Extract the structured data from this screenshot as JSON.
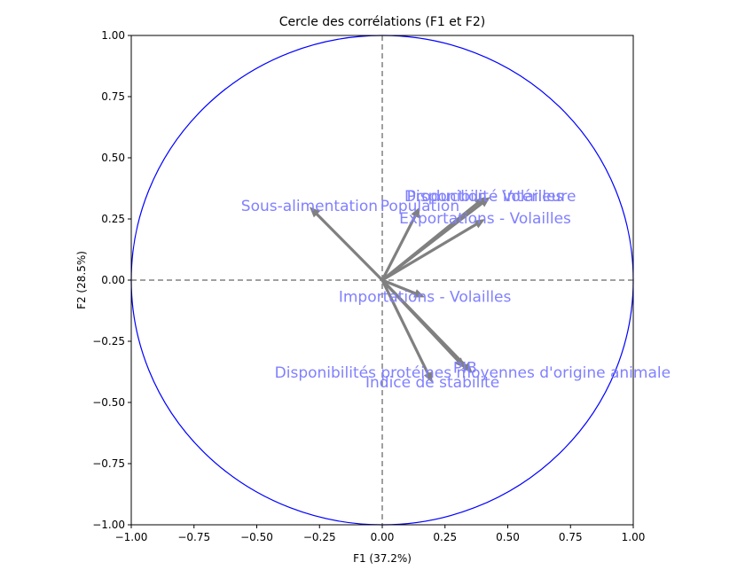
{
  "chart_data": {
    "type": "scatter",
    "title": "Cercle des corrélations (F1 et F2)",
    "xlabel": "F1 (37.2%)",
    "ylabel": "F2 (28.5%)",
    "xlim": [
      -1.0,
      1.0
    ],
    "ylim": [
      -1.0,
      1.0
    ],
    "xticks": [
      -1.0,
      -0.75,
      -0.5,
      -0.25,
      0.0,
      0.25,
      0.5,
      0.75,
      1.0
    ],
    "yticks": [
      -1.0,
      -0.75,
      -0.5,
      -0.25,
      0.0,
      0.25,
      0.5,
      0.75,
      1.0
    ],
    "xtick_labels": [
      "−1.00",
      "−0.75",
      "−0.50",
      "−0.25",
      "0.00",
      "0.25",
      "0.50",
      "0.75",
      "1.00"
    ],
    "ytick_labels": [
      "−1.00",
      "−0.75",
      "−0.50",
      "−0.25",
      "0.00",
      "0.25",
      "0.50",
      "0.75",
      "1.00"
    ],
    "grid": false,
    "unit_circle": true,
    "reference_lines": [
      0,
      0
    ],
    "colors": {
      "circle": "#0000ff",
      "arrow": "#808080",
      "label": "#8080ff",
      "reference": "#808080"
    },
    "vectors": [
      {
        "name": "Sous-alimentation",
        "x": -0.29,
        "y": 0.3
      },
      {
        "name": "Population",
        "x": 0.15,
        "y": 0.3
      },
      {
        "name": "Disponibilité intérieure",
        "x": 0.43,
        "y": 0.34
      },
      {
        "name": "Production - Volailles",
        "x": 0.41,
        "y": 0.34
      },
      {
        "name": "Exportations - Volailles",
        "x": 0.41,
        "y": 0.25
      },
      {
        "name": "Importations - Volailles",
        "x": 0.17,
        "y": -0.07
      },
      {
        "name": "PIB",
        "x": 0.33,
        "y": -0.36
      },
      {
        "name": "Disponibilités protéines moyennes d'origine animale",
        "x": 0.36,
        "y": -0.38
      },
      {
        "name": "Indice de stabilité",
        "x": 0.2,
        "y": -0.42
      }
    ]
  }
}
